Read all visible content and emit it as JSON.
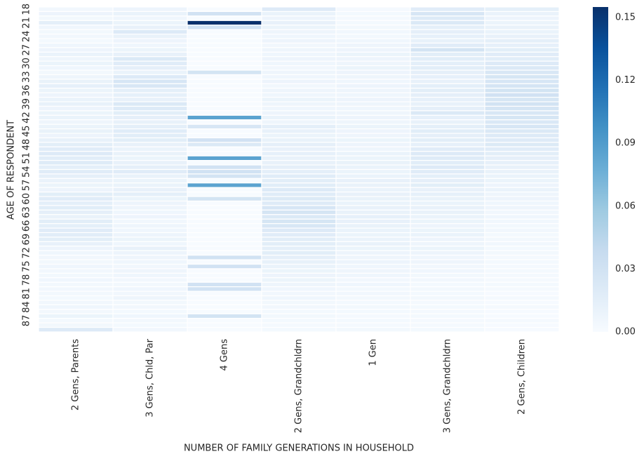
{
  "chart_data": {
    "type": "heatmap",
    "xlabel": "NUMBER OF FAMILY GENERATIONS IN HOUSEHOLD",
    "ylabel": "AGE OF RESPONDENT",
    "rows": [
      "18",
      null,
      null,
      "21",
      null,
      null,
      "24",
      null,
      null,
      "27",
      null,
      null,
      "30",
      null,
      null,
      "33",
      null,
      null,
      "36",
      null,
      null,
      "39",
      null,
      null,
      "42",
      null,
      null,
      "45",
      null,
      null,
      "48",
      null,
      null,
      "51",
      null,
      null,
      "54",
      null,
      null,
      "57",
      null,
      null,
      "60",
      null,
      null,
      "63",
      null,
      null,
      "66",
      null,
      null,
      "69",
      null,
      null,
      "72",
      null,
      null,
      "75",
      null,
      null,
      "78",
      null,
      null,
      "81",
      null,
      null,
      "84",
      null,
      null,
      "87",
      null,
      null
    ],
    "columns": [
      {
        "name": "2 Gens, Parents",
        "values": [
          0.005,
          0.008,
          0.004,
          0.015,
          0.006,
          0.004,
          0.005,
          0.003,
          0.006,
          0.008,
          0.01,
          0.007,
          0.009,
          0.006,
          0.004,
          0.007,
          0.011,
          0.013,
          0.009,
          0.008,
          0.01,
          0.012,
          0.008,
          0.009,
          0.01,
          0.007,
          0.009,
          0.011,
          0.008,
          0.012,
          0.016,
          0.018,
          0.02,
          0.017,
          0.019,
          0.015,
          0.018,
          0.014,
          0.01,
          0.009,
          0.008,
          0.016,
          0.018,
          0.015,
          0.017,
          0.014,
          0.011,
          0.016,
          0.015,
          0.018,
          0.017,
          0.016,
          0.012,
          0.008,
          0.006,
          0.005,
          0.004,
          0.006,
          0.005,
          0.004,
          0.006,
          0.004,
          0.005,
          0.004,
          0.003,
          0.005,
          0.006,
          0.004,
          0.009,
          0.003,
          0.004,
          0.02
        ]
      },
      {
        "name": "3 Gens, Chld, Par",
        "values": [
          0.008,
          0.01,
          0.006,
          0.009,
          0.012,
          0.02,
          0.011,
          0.008,
          0.006,
          0.009,
          0.012,
          0.022,
          0.018,
          0.014,
          0.01,
          0.02,
          0.025,
          0.024,
          0.015,
          0.013,
          0.012,
          0.022,
          0.02,
          0.016,
          0.014,
          0.012,
          0.015,
          0.018,
          0.017,
          0.016,
          0.012,
          0.01,
          0.011,
          0.009,
          0.012,
          0.014,
          0.018,
          0.011,
          0.009,
          0.01,
          0.012,
          0.015,
          0.009,
          0.008,
          0.007,
          0.006,
          0.008,
          0.005,
          0.007,
          0.006,
          0.008,
          0.009,
          0.006,
          0.012,
          0.008,
          0.007,
          0.006,
          0.005,
          0.007,
          0.006,
          0.005,
          0.004,
          0.006,
          0.005,
          0.007,
          0.004,
          0.005,
          0.003,
          0.006,
          0.004,
          0.003,
          0.005
        ]
      },
      {
        "name": "4 Gens",
        "values": [
          0,
          0.03,
          0,
          0.155,
          0.03,
          0,
          0,
          0,
          0,
          0,
          0,
          0,
          0,
          0,
          0.028,
          0,
          0,
          0,
          0,
          0,
          0,
          0,
          0,
          0,
          0.085,
          0,
          0.025,
          0,
          0,
          0.03,
          0.022,
          0,
          0,
          0.085,
          0,
          0.03,
          0.03,
          0.028,
          0,
          0.085,
          0,
          0,
          0.028,
          0,
          0,
          0,
          0,
          0,
          0,
          0,
          0,
          0,
          0,
          0,
          0,
          0.03,
          0,
          0.03,
          0,
          0,
          0,
          0.03,
          0.03,
          0,
          0,
          0,
          0,
          0,
          0.028,
          0,
          0,
          0
        ]
      },
      {
        "name": "2 Gens, Grandchldrn",
        "values": [
          0.02,
          0.01,
          0.008,
          0.012,
          0.009,
          0.007,
          0.006,
          0.008,
          0.005,
          0.007,
          0.006,
          0.008,
          0.006,
          0.005,
          0.007,
          0.006,
          0.008,
          0.005,
          0.007,
          0.006,
          0.009,
          0.007,
          0.006,
          0.008,
          0.01,
          0.007,
          0.015,
          0.012,
          0.009,
          0.011,
          0.014,
          0.012,
          0.013,
          0.011,
          0.012,
          0.014,
          0.015,
          0.018,
          0.016,
          0.017,
          0.02,
          0.018,
          0.021,
          0.019,
          0.025,
          0.027,
          0.022,
          0.026,
          0.024,
          0.02,
          0.018,
          0.017,
          0.016,
          0.015,
          0.016,
          0.014,
          0.012,
          0.01,
          0.009,
          0.008,
          0.009,
          0.007,
          0.006,
          0.005,
          0.006,
          0.004,
          0.005,
          0.003,
          0.004,
          0.003,
          0.002,
          0.003
        ]
      },
      {
        "name": "1 Gen",
        "values": [
          0.002,
          0.003,
          0.002,
          0.003,
          0.004,
          0.005,
          0.004,
          0.006,
          0.007,
          0.008,
          0.009,
          0.008,
          0.007,
          0.009,
          0.008,
          0.007,
          0.006,
          0.008,
          0.007,
          0.006,
          0.008,
          0.007,
          0.006,
          0.007,
          0.008,
          0.007,
          0.009,
          0.008,
          0.007,
          0.009,
          0.008,
          0.007,
          0.01,
          0.009,
          0.011,
          0.01,
          0.009,
          0.01,
          0.012,
          0.011,
          0.01,
          0.012,
          0.011,
          0.01,
          0.012,
          0.011,
          0.013,
          0.012,
          0.011,
          0.01,
          0.009,
          0.01,
          0.011,
          0.009,
          0.008,
          0.007,
          0.008,
          0.006,
          0.007,
          0.006,
          0.005,
          0.006,
          0.004,
          0.005,
          0.004,
          0.003,
          0.004,
          0.003,
          0.002,
          0.003,
          0.002,
          0.004
        ]
      },
      {
        "name": "3 Gens, Grandchldrn",
        "values": [
          0.018,
          0.025,
          0.02,
          0.022,
          0.015,
          0.014,
          0.013,
          0.012,
          0.018,
          0.028,
          0.016,
          0.017,
          0.015,
          0.016,
          0.014,
          0.013,
          0.012,
          0.015,
          0.016,
          0.014,
          0.013,
          0.012,
          0.014,
          0.022,
          0.013,
          0.012,
          0.015,
          0.017,
          0.014,
          0.016,
          0.013,
          0.018,
          0.02,
          0.019,
          0.017,
          0.02,
          0.018,
          0.015,
          0.014,
          0.016,
          0.012,
          0.013,
          0.011,
          0.01,
          0.012,
          0.011,
          0.01,
          0.009,
          0.008,
          0.009,
          0.01,
          0.008,
          0.007,
          0.009,
          0.008,
          0.006,
          0.007,
          0.005,
          0.006,
          0.004,
          0.005,
          0.003,
          0.004,
          0.003,
          0.004,
          0.002,
          0.003,
          0.002,
          0.003,
          0.002,
          0.002,
          0.003
        ]
      },
      {
        "name": "2 Gens, Children",
        "values": [
          0.015,
          0.01,
          0.008,
          0.009,
          0.011,
          0.01,
          0.012,
          0.014,
          0.013,
          0.016,
          0.018,
          0.017,
          0.02,
          0.022,
          0.024,
          0.026,
          0.025,
          0.027,
          0.028,
          0.03,
          0.026,
          0.029,
          0.027,
          0.024,
          0.026,
          0.023,
          0.025,
          0.022,
          0.02,
          0.019,
          0.021,
          0.018,
          0.016,
          0.014,
          0.013,
          0.012,
          0.011,
          0.01,
          0.009,
          0.008,
          0.01,
          0.007,
          0.008,
          0.006,
          0.007,
          0.005,
          0.006,
          0.005,
          0.004,
          0.005,
          0.003,
          0.004,
          0.005,
          0.003,
          0.004,
          0.002,
          0.003,
          0.002,
          0.003,
          0.002,
          0.002,
          0.003,
          0.002,
          0.001,
          0.002,
          0.001,
          0.002,
          0.001,
          0.001,
          0.002,
          0.001,
          0.001
        ]
      }
    ],
    "colormap": [
      "#f7fbff",
      "#deebf7",
      "#c6dbef",
      "#9ecae1",
      "#6baed6",
      "#4292c6",
      "#2171b5",
      "#08519c",
      "#08306b"
    ],
    "clim": [
      0,
      0.155
    ],
    "cticks": [
      {
        "value": 0,
        "label": "0.00"
      },
      {
        "value": 0.03,
        "label": "0.03"
      },
      {
        "value": 0.06,
        "label": "0.06"
      },
      {
        "value": 0.09,
        "label": "0.09"
      },
      {
        "value": 0.12,
        "label": "0.12"
      },
      {
        "value": 0.15,
        "label": "0.15"
      }
    ]
  }
}
